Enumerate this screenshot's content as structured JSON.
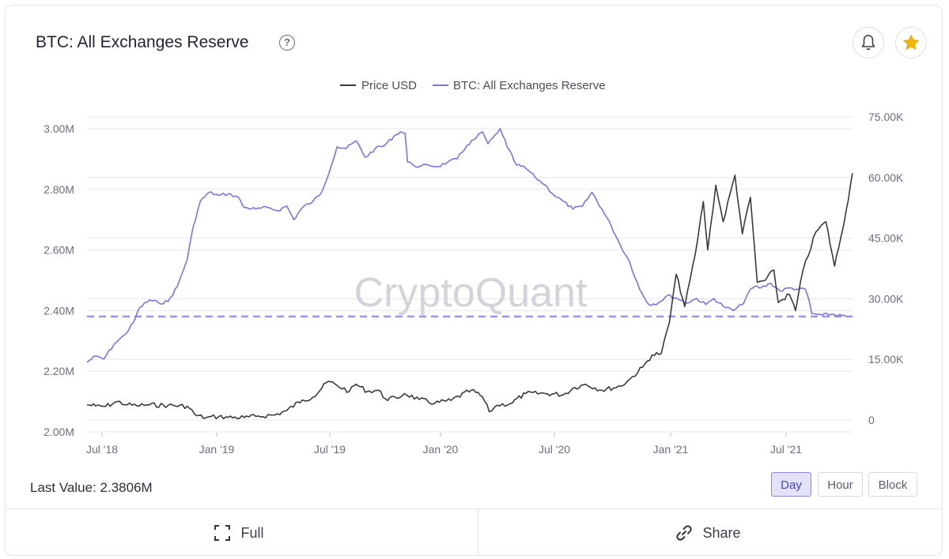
{
  "header": {
    "title": "BTC: All Exchanges Reserve"
  },
  "legend": {
    "price_label": "Price USD",
    "reserve_label": "BTC: All Exchanges Reserve"
  },
  "watermark": "CryptoQuant",
  "footer": {
    "last_value_label": "Last Value:",
    "last_value": "2.3806M",
    "full_label": "Full",
    "share_label": "Share"
  },
  "range_buttons": [
    "Day",
    "Hour",
    "Block"
  ],
  "active_range": "Day",
  "colors": {
    "reserve": "#7b74e2",
    "price": "#3a3a3a",
    "dashed_line": "#9b95ea",
    "star": "#f5b400"
  },
  "chart_data": {
    "type": "line",
    "x_ticks": [
      "Jul '18",
      "Jan '19",
      "Jul '19",
      "Jan '20",
      "Jul '20",
      "Jan '21",
      "Jul '21"
    ],
    "y_left_ticks": [
      "3.00M",
      "2.80M",
      "2.60M",
      "2.40M",
      "2.20M",
      "2.00M"
    ],
    "y_right_ticks": [
      "75.00K",
      "60.00K",
      "45.00K",
      "30.00K",
      "15.00K",
      "0"
    ],
    "y_left_range": [
      2000000,
      3000000
    ],
    "y_right_range": [
      0,
      75000
    ],
    "last_value_line": 2380600,
    "grid": "horizontal",
    "series": [
      {
        "name": "BTC: All Exchanges Reserve",
        "axis": "left",
        "points": [
          [
            "2018-06-01",
            2230000
          ],
          [
            "2018-06-15",
            2250000
          ],
          [
            "2018-06-28",
            2240000
          ],
          [
            "2018-07-15",
            2290000
          ],
          [
            "2018-08-01",
            2320000
          ],
          [
            "2018-08-15",
            2360000
          ],
          [
            "2018-08-25",
            2410000
          ],
          [
            "2018-09-10",
            2435000
          ],
          [
            "2018-09-25",
            2425000
          ],
          [
            "2018-10-10",
            2430000
          ],
          [
            "2018-10-25",
            2480000
          ],
          [
            "2018-11-10",
            2570000
          ],
          [
            "2018-11-20",
            2680000
          ],
          [
            "2018-12-01",
            2760000
          ],
          [
            "2018-12-15",
            2790000
          ],
          [
            "2018-12-31",
            2780000
          ],
          [
            "2019-01-15",
            2785000
          ],
          [
            "2019-01-31",
            2775000
          ],
          [
            "2019-02-10",
            2740000
          ],
          [
            "2019-03-01",
            2735000
          ],
          [
            "2019-03-20",
            2740000
          ],
          [
            "2019-04-05",
            2730000
          ],
          [
            "2019-04-20",
            2745000
          ],
          [
            "2019-05-01",
            2700000
          ],
          [
            "2019-05-15",
            2740000
          ],
          [
            "2019-06-01",
            2760000
          ],
          [
            "2019-06-15",
            2790000
          ],
          [
            "2019-07-01",
            2880000
          ],
          [
            "2019-07-10",
            2940000
          ],
          [
            "2019-07-25",
            2935000
          ],
          [
            "2019-08-10",
            2960000
          ],
          [
            "2019-08-25",
            2905000
          ],
          [
            "2019-09-10",
            2935000
          ],
          [
            "2019-09-25",
            2945000
          ],
          [
            "2019-10-10",
            2975000
          ],
          [
            "2019-10-20",
            2990000
          ],
          [
            "2019-10-28",
            2985000
          ],
          [
            "2019-11-01",
            2890000
          ],
          [
            "2019-11-10",
            2880000
          ],
          [
            "2019-11-20",
            2875000
          ],
          [
            "2019-12-05",
            2880000
          ],
          [
            "2019-12-20",
            2875000
          ],
          [
            "2020-01-05",
            2890000
          ],
          [
            "2020-01-20",
            2900000
          ],
          [
            "2020-02-05",
            2945000
          ],
          [
            "2020-02-20",
            2970000
          ],
          [
            "2020-03-01",
            2990000
          ],
          [
            "2020-03-10",
            2950000
          ],
          [
            "2020-03-25",
            2985000
          ],
          [
            "2020-03-30",
            3000000
          ],
          [
            "2020-04-10",
            2940000
          ],
          [
            "2020-04-25",
            2880000
          ],
          [
            "2020-05-10",
            2870000
          ],
          [
            "2020-05-25",
            2840000
          ],
          [
            "2020-06-10",
            2815000
          ],
          [
            "2020-06-25",
            2780000
          ],
          [
            "2020-07-10",
            2760000
          ],
          [
            "2020-07-25",
            2735000
          ],
          [
            "2020-08-10",
            2745000
          ],
          [
            "2020-08-25",
            2790000
          ],
          [
            "2020-09-10",
            2735000
          ],
          [
            "2020-09-25",
            2680000
          ],
          [
            "2020-10-10",
            2615000
          ],
          [
            "2020-10-25",
            2560000
          ],
          [
            "2020-11-10",
            2470000
          ],
          [
            "2020-11-25",
            2420000
          ],
          [
            "2020-12-10",
            2425000
          ],
          [
            "2020-12-25",
            2450000
          ],
          [
            "2021-01-10",
            2440000
          ],
          [
            "2021-01-25",
            2425000
          ],
          [
            "2021-02-10",
            2440000
          ],
          [
            "2021-02-25",
            2420000
          ],
          [
            "2021-03-10",
            2440000
          ],
          [
            "2021-03-25",
            2415000
          ],
          [
            "2021-04-10",
            2400000
          ],
          [
            "2021-04-25",
            2420000
          ],
          [
            "2021-05-05",
            2460000
          ],
          [
            "2021-05-15",
            2480000
          ],
          [
            "2021-05-25",
            2475000
          ],
          [
            "2021-06-10",
            2490000
          ],
          [
            "2021-06-25",
            2465000
          ],
          [
            "2021-07-10",
            2475000
          ],
          [
            "2021-07-25",
            2470000
          ],
          [
            "2021-08-05",
            2470000
          ],
          [
            "2021-08-10",
            2440000
          ],
          [
            "2021-08-15",
            2390000
          ],
          [
            "2021-09-01",
            2385000
          ],
          [
            "2021-09-15",
            2388000
          ],
          [
            "2021-10-10",
            2380600
          ]
        ]
      },
      {
        "name": "Price USD",
        "axis": "right",
        "points": [
          [
            "2018-06-01",
            6700
          ],
          [
            "2018-06-15",
            6400
          ],
          [
            "2018-07-01",
            6300
          ],
          [
            "2018-07-20",
            7500
          ],
          [
            "2018-08-05",
            6700
          ],
          [
            "2018-08-20",
            6500
          ],
          [
            "2018-09-10",
            6700
          ],
          [
            "2018-10-10",
            6550
          ],
          [
            "2018-11-10",
            6350
          ],
          [
            "2018-11-25",
            4000
          ],
          [
            "2018-12-10",
            3500
          ],
          [
            "2018-12-31",
            3800
          ],
          [
            "2019-01-15",
            3600
          ],
          [
            "2019-02-10",
            3550
          ],
          [
            "2019-03-01",
            3800
          ],
          [
            "2019-04-01",
            4200
          ],
          [
            "2019-04-20",
            5300
          ],
          [
            "2019-05-15",
            7900
          ],
          [
            "2019-06-01",
            8600
          ],
          [
            "2019-06-26",
            12500
          ],
          [
            "2019-07-10",
            11500
          ],
          [
            "2019-07-30",
            10000
          ],
          [
            "2019-08-10",
            11800
          ],
          [
            "2019-08-28",
            10000
          ],
          [
            "2019-09-15",
            10300
          ],
          [
            "2019-09-26",
            8200
          ],
          [
            "2019-10-15",
            8300
          ],
          [
            "2019-10-27",
            9500
          ],
          [
            "2019-11-20",
            8000
          ],
          [
            "2019-12-15",
            7100
          ],
          [
            "2020-01-10",
            7800
          ],
          [
            "2020-02-12",
            10300
          ],
          [
            "2020-03-01",
            8700
          ],
          [
            "2020-03-12",
            5000
          ],
          [
            "2020-03-25",
            6600
          ],
          [
            "2020-04-15",
            7000
          ],
          [
            "2020-05-10",
            9500
          ],
          [
            "2020-06-10",
            9500
          ],
          [
            "2020-07-10",
            9200
          ],
          [
            "2020-07-28",
            11000
          ],
          [
            "2020-08-15",
            11800
          ],
          [
            "2020-09-10",
            10300
          ],
          [
            "2020-10-10",
            11300
          ],
          [
            "2020-10-25",
            13000
          ],
          [
            "2020-11-15",
            16000
          ],
          [
            "2020-11-30",
            19000
          ],
          [
            "2020-12-15",
            19400
          ],
          [
            "2020-12-28",
            27000
          ],
          [
            "2021-01-08",
            39000
          ],
          [
            "2021-01-22",
            31000
          ],
          [
            "2021-02-08",
            44000
          ],
          [
            "2021-02-21",
            57000
          ],
          [
            "2021-02-28",
            45000
          ],
          [
            "2021-03-13",
            61000
          ],
          [
            "2021-03-25",
            52000
          ],
          [
            "2021-04-13",
            63500
          ],
          [
            "2021-04-25",
            49000
          ],
          [
            "2021-05-08",
            58000
          ],
          [
            "2021-05-19",
            37000
          ],
          [
            "2021-06-01",
            37500
          ],
          [
            "2021-06-15",
            40000
          ],
          [
            "2021-06-22",
            32000
          ],
          [
            "2021-07-10",
            34000
          ],
          [
            "2021-07-20",
            30000
          ],
          [
            "2021-08-01",
            40000
          ],
          [
            "2021-08-22",
            49500
          ],
          [
            "2021-09-07",
            52000
          ],
          [
            "2021-09-21",
            41000
          ],
          [
            "2021-10-01",
            48000
          ],
          [
            "2021-10-10",
            55000
          ],
          [
            "2021-10-20",
            64000
          ]
        ]
      }
    ]
  }
}
